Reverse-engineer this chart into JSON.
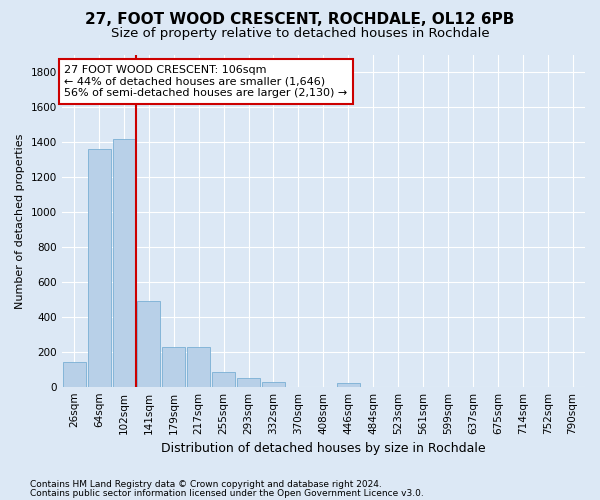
{
  "title1": "27, FOOT WOOD CRESCENT, ROCHDALE, OL12 6PB",
  "title2": "Size of property relative to detached houses in Rochdale",
  "xlabel": "Distribution of detached houses by size in Rochdale",
  "ylabel": "Number of detached properties",
  "bar_color": "#b8d0e8",
  "bar_edge_color": "#7aafd4",
  "categories": [
    "26sqm",
    "64sqm",
    "102sqm",
    "141sqm",
    "179sqm",
    "217sqm",
    "255sqm",
    "293sqm",
    "332sqm",
    "370sqm",
    "408sqm",
    "446sqm",
    "484sqm",
    "523sqm",
    "561sqm",
    "599sqm",
    "637sqm",
    "675sqm",
    "714sqm",
    "752sqm",
    "790sqm"
  ],
  "values": [
    140,
    1360,
    1420,
    490,
    230,
    230,
    85,
    50,
    25,
    0,
    0,
    20,
    0,
    0,
    0,
    0,
    0,
    0,
    0,
    0,
    0
  ],
  "ylim": [
    0,
    1900
  ],
  "yticks": [
    0,
    200,
    400,
    600,
    800,
    1000,
    1200,
    1400,
    1600,
    1800
  ],
  "vline_x": 2.5,
  "vline_color": "#cc0000",
  "annotation_title": "27 FOOT WOOD CRESCENT: 106sqm",
  "annotation_line1": "← 44% of detached houses are smaller (1,646)",
  "annotation_line2": "56% of semi-detached houses are larger (2,130) →",
  "annotation_box_edge": "#cc0000",
  "footer1": "Contains HM Land Registry data © Crown copyright and database right 2024.",
  "footer2": "Contains public sector information licensed under the Open Government Licence v3.0.",
  "background_color": "#dce8f5",
  "grid_color": "#ffffff",
  "title1_fontsize": 11,
  "title2_fontsize": 9.5,
  "ylabel_fontsize": 8,
  "xlabel_fontsize": 9,
  "tick_fontsize": 7.5,
  "ann_fontsize": 8
}
